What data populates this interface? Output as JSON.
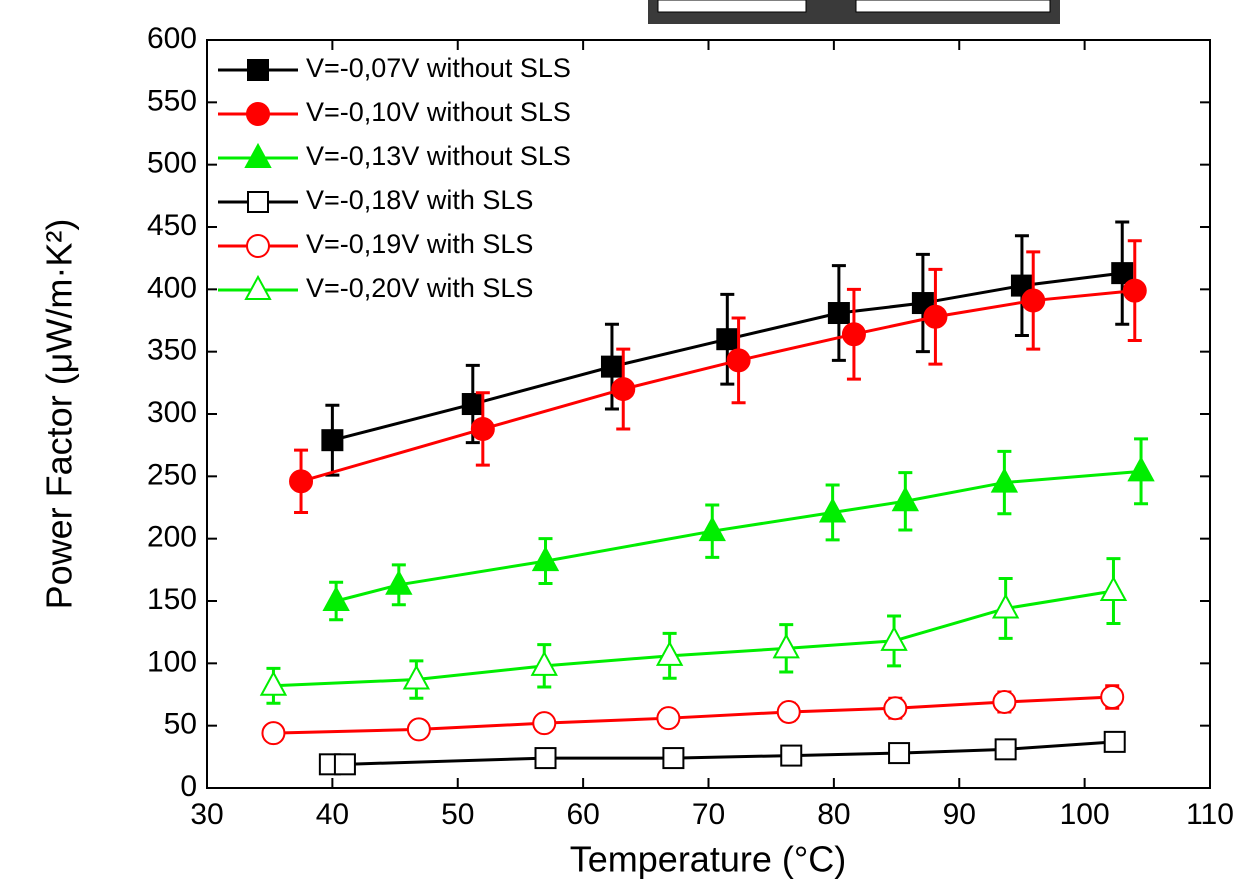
{
  "chart_data": {
    "type": "line",
    "x_label": "Temperature (°C)",
    "y_label": "Power Factor (μW/m·K²)",
    "xlim": [
      30,
      110
    ],
    "xticks": [
      30,
      40,
      50,
      60,
      70,
      80,
      90,
      100,
      110
    ],
    "ylim": [
      0,
      600
    ],
    "yticks": [
      0,
      50,
      100,
      150,
      200,
      250,
      300,
      350,
      400,
      450,
      500,
      550,
      600
    ],
    "legend_position": "upper left",
    "series": [
      {
        "name": "V=-0,07V without SLS",
        "color": "#000000",
        "marker": "square",
        "filled": true,
        "x": [
          40.0,
          51.2,
          62.3,
          71.5,
          80.4,
          87.1,
          95.0,
          103.0
        ],
        "values": [
          279,
          308,
          338,
          360,
          381,
          389,
          403,
          413
        ],
        "errors": [
          28,
          31,
          34,
          36,
          38,
          39,
          40,
          41
        ]
      },
      {
        "name": "V=-0,10V without SLS",
        "color": "#ff0000",
        "marker": "circle",
        "filled": true,
        "x": [
          37.5,
          52.0,
          63.2,
          72.4,
          81.6,
          88.1,
          95.9,
          104.0
        ],
        "values": [
          246,
          288,
          320,
          343,
          364,
          378,
          391,
          399
        ],
        "errors": [
          25,
          29,
          32,
          34,
          36,
          38,
          39,
          40
        ]
      },
      {
        "name": "V=-0,13V without SLS",
        "color": "#00ee00",
        "marker": "triangle",
        "filled": true,
        "x": [
          40.3,
          45.3,
          57.0,
          70.3,
          79.9,
          85.7,
          93.6,
          104.5
        ],
        "values": [
          150,
          163,
          182,
          206,
          221,
          230,
          245,
          254
        ],
        "errors": [
          15,
          16,
          18,
          21,
          22,
          23,
          25,
          26
        ]
      },
      {
        "name": "V=-0,18V with SLS",
        "color": "#000000",
        "marker": "square",
        "filled": false,
        "x": [
          39.8,
          41.0,
          57.0,
          67.2,
          76.6,
          85.2,
          93.7,
          102.4
        ],
        "values": [
          19,
          19,
          24,
          24,
          26,
          28,
          31,
          37
        ],
        "errors": [
          4,
          4,
          5,
          5,
          5,
          5,
          5,
          6
        ]
      },
      {
        "name": "V=-0,19V with SLS",
        "color": "#ff0000",
        "marker": "circle",
        "filled": false,
        "x": [
          35.3,
          46.9,
          56.9,
          66.8,
          76.4,
          84.9,
          93.6,
          102.2
        ],
        "values": [
          44,
          47,
          52,
          56,
          61,
          64,
          69,
          73
        ],
        "errors": [
          5,
          6,
          6,
          7,
          7,
          8,
          8,
          9
        ]
      },
      {
        "name": "V=-0,20V with SLS",
        "color": "#00ee00",
        "marker": "triangle",
        "filled": false,
        "x": [
          35.3,
          46.7,
          56.9,
          66.9,
          76.2,
          84.8,
          93.7,
          102.3
        ],
        "values": [
          82,
          87,
          98,
          106,
          112,
          118,
          144,
          158
        ],
        "errors": [
          14,
          15,
          17,
          18,
          19,
          20,
          24,
          26
        ]
      }
    ]
  }
}
